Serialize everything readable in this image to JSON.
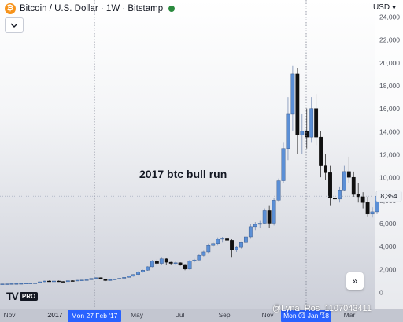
{
  "header": {
    "title": "Bitcoin / U.S. Dollar · 1W · Bitstamp",
    "btc_glyph": "₿",
    "status_color": "#2b8a3e"
  },
  "currency_label": "USD",
  "collapse_icon": "chevron-down-icon",
  "goto_icon": "double-chevron-right-icon",
  "logo": {
    "pro": "PRO"
  },
  "watermark": "@Lyna_Ros_1107043411",
  "colors": {
    "up": "#5b8fd6",
    "down": "#101010",
    "accent": "#2962ff",
    "bg_top": "#ffffff",
    "bg_bottom": "#c9ccd6"
  },
  "chart_data": {
    "type": "candlestick",
    "annotation": "2017 btc bull run",
    "y_axis": {
      "min": 0,
      "max": 24000,
      "ticks": [
        "0",
        "2,000",
        "4,000",
        "6,000",
        "8,000",
        "10,000",
        "12,000",
        "14,000",
        "16,000",
        "18,000",
        "20,000",
        "22,000",
        "24,000"
      ]
    },
    "x_axis_labels": [
      "Nov",
      "2017",
      "Mar",
      "May",
      "Jul",
      "Sep",
      "Nov",
      "Jan",
      "Mar"
    ],
    "crosshair": {
      "date_label": "Mon 27 Feb '17",
      "cursor_date_label": "Mon 01 Jan '18"
    },
    "last_price": {
      "label": "8,354",
      "value": 8354
    },
    "candles": [
      {
        "o": 700,
        "h": 720,
        "l": 690,
        "c": 710
      },
      {
        "o": 710,
        "h": 730,
        "l": 700,
        "c": 715
      },
      {
        "o": 715,
        "h": 740,
        "l": 710,
        "c": 730
      },
      {
        "o": 730,
        "h": 750,
        "l": 720,
        "c": 740
      },
      {
        "o": 740,
        "h": 760,
        "l": 730,
        "c": 750
      },
      {
        "o": 750,
        "h": 780,
        "l": 740,
        "c": 770
      },
      {
        "o": 770,
        "h": 790,
        "l": 760,
        "c": 780
      },
      {
        "o": 780,
        "h": 800,
        "l": 770,
        "c": 790
      },
      {
        "o": 790,
        "h": 900,
        "l": 780,
        "c": 890
      },
      {
        "o": 890,
        "h": 980,
        "l": 870,
        "c": 960
      },
      {
        "o": 960,
        "h": 1000,
        "l": 900,
        "c": 920
      },
      {
        "o": 920,
        "h": 1000,
        "l": 800,
        "c": 960
      },
      {
        "o": 960,
        "h": 1000,
        "l": 880,
        "c": 920
      },
      {
        "o": 920,
        "h": 940,
        "l": 880,
        "c": 900
      },
      {
        "o": 900,
        "h": 1000,
        "l": 890,
        "c": 990
      },
      {
        "o": 990,
        "h": 1020,
        "l": 950,
        "c": 980
      },
      {
        "o": 980,
        "h": 1050,
        "l": 960,
        "c": 1030
      },
      {
        "o": 1030,
        "h": 1060,
        "l": 1000,
        "c": 1050
      },
      {
        "o": 1050,
        "h": 1080,
        "l": 1030,
        "c": 1070
      },
      {
        "o": 1070,
        "h": 1200,
        "l": 1060,
        "c": 1190
      },
      {
        "o": 1190,
        "h": 1280,
        "l": 1150,
        "c": 1250
      },
      {
        "o": 1250,
        "h": 1290,
        "l": 1100,
        "c": 1130
      },
      {
        "o": 1130,
        "h": 1150,
        "l": 950,
        "c": 1000
      },
      {
        "o": 1000,
        "h": 1100,
        "l": 970,
        "c": 1080
      },
      {
        "o": 1080,
        "h": 1150,
        "l": 1050,
        "c": 1130
      },
      {
        "o": 1130,
        "h": 1220,
        "l": 1110,
        "c": 1200
      },
      {
        "o": 1200,
        "h": 1300,
        "l": 1180,
        "c": 1280
      },
      {
        "o": 1280,
        "h": 1400,
        "l": 1260,
        "c": 1380
      },
      {
        "o": 1380,
        "h": 1550,
        "l": 1350,
        "c": 1530
      },
      {
        "o": 1530,
        "h": 1800,
        "l": 1500,
        "c": 1760
      },
      {
        "o": 1760,
        "h": 1950,
        "l": 1700,
        "c": 1900
      },
      {
        "o": 1900,
        "h": 2250,
        "l": 1850,
        "c": 2200
      },
      {
        "o": 2200,
        "h": 2800,
        "l": 2150,
        "c": 2700
      },
      {
        "o": 2700,
        "h": 2850,
        "l": 2300,
        "c": 2500
      },
      {
        "o": 2500,
        "h": 3000,
        "l": 2400,
        "c": 2900
      },
      {
        "o": 2900,
        "h": 2950,
        "l": 2400,
        "c": 2600
      },
      {
        "o": 2600,
        "h": 2650,
        "l": 2350,
        "c": 2500
      },
      {
        "o": 2500,
        "h": 2700,
        "l": 2400,
        "c": 2550
      },
      {
        "o": 2550,
        "h": 2600,
        "l": 2300,
        "c": 2400
      },
      {
        "o": 2400,
        "h": 2450,
        "l": 1900,
        "c": 2000
      },
      {
        "o": 2000,
        "h": 2800,
        "l": 1950,
        "c": 2700
      },
      {
        "o": 2700,
        "h": 2900,
        "l": 2600,
        "c": 2800
      },
      {
        "o": 2800,
        "h": 3300,
        "l": 2750,
        "c": 3200
      },
      {
        "o": 3200,
        "h": 3600,
        "l": 3100,
        "c": 3500
      },
      {
        "o": 3500,
        "h": 4200,
        "l": 3400,
        "c": 4100
      },
      {
        "o": 4100,
        "h": 4400,
        "l": 3900,
        "c": 4200
      },
      {
        "o": 4200,
        "h": 4750,
        "l": 4100,
        "c": 4600
      },
      {
        "o": 4600,
        "h": 4800,
        "l": 4300,
        "c": 4700
      },
      {
        "o": 4700,
        "h": 4900,
        "l": 4400,
        "c": 4500
      },
      {
        "o": 4500,
        "h": 4600,
        "l": 3000,
        "c": 3700
      },
      {
        "o": 3700,
        "h": 4000,
        "l": 3500,
        "c": 3900
      },
      {
        "o": 3900,
        "h": 4400,
        "l": 3800,
        "c": 4300
      },
      {
        "o": 4300,
        "h": 5000,
        "l": 4200,
        "c": 4800
      },
      {
        "o": 4800,
        "h": 5900,
        "l": 4700,
        "c": 5700
      },
      {
        "o": 5700,
        "h": 6100,
        "l": 5400,
        "c": 5900
      },
      {
        "o": 5900,
        "h": 6200,
        "l": 5600,
        "c": 6000
      },
      {
        "o": 6000,
        "h": 7300,
        "l": 5900,
        "c": 7100
      },
      {
        "o": 7100,
        "h": 7500,
        "l": 5600,
        "c": 6000
      },
      {
        "o": 6000,
        "h": 8200,
        "l": 5800,
        "c": 8000
      },
      {
        "o": 8000,
        "h": 9900,
        "l": 7900,
        "c": 9700
      },
      {
        "o": 9700,
        "h": 13000,
        "l": 9500,
        "c": 12500
      },
      {
        "o": 12500,
        "h": 17000,
        "l": 11500,
        "c": 15500
      },
      {
        "o": 15500,
        "h": 19700,
        "l": 14000,
        "c": 19000
      },
      {
        "o": 19000,
        "h": 19500,
        "l": 12000,
        "c": 13700
      },
      {
        "o": 13700,
        "h": 15500,
        "l": 12000,
        "c": 14000
      },
      {
        "o": 14000,
        "h": 16000,
        "l": 12500,
        "c": 13500
      },
      {
        "o": 13500,
        "h": 17000,
        "l": 13000,
        "c": 16000
      },
      {
        "o": 16000,
        "h": 17200,
        "l": 12800,
        "c": 13500
      },
      {
        "o": 13500,
        "h": 14000,
        "l": 10000,
        "c": 11000
      },
      {
        "o": 11000,
        "h": 12000,
        "l": 9800,
        "c": 10400
      },
      {
        "o": 10400,
        "h": 11000,
        "l": 7500,
        "c": 8200
      },
      {
        "o": 8200,
        "h": 9000,
        "l": 6000,
        "c": 8100
      },
      {
        "o": 8100,
        "h": 9200,
        "l": 7800,
        "c": 8900
      },
      {
        "o": 8900,
        "h": 11000,
        "l": 8800,
        "c": 10500
      },
      {
        "o": 10500,
        "h": 11800,
        "l": 9500,
        "c": 10000
      },
      {
        "o": 10000,
        "h": 10500,
        "l": 8300,
        "c": 8500
      },
      {
        "o": 8500,
        "h": 9500,
        "l": 7800,
        "c": 8300
      },
      {
        "o": 8300,
        "h": 8700,
        "l": 7300,
        "c": 7800
      },
      {
        "o": 7800,
        "h": 8300,
        "l": 6600,
        "c": 6800
      },
      {
        "o": 6800,
        "h": 7400,
        "l": 6500,
        "c": 7000
      },
      {
        "o": 7000,
        "h": 8500,
        "l": 6800,
        "c": 8354
      }
    ]
  }
}
